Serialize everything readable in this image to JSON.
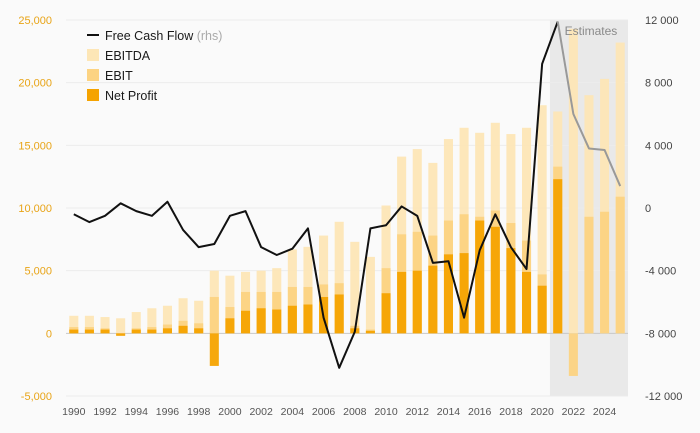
{
  "chart_data": {
    "type": "bar",
    "title": "",
    "x": [
      1990,
      1991,
      1992,
      1993,
      1994,
      1995,
      1996,
      1997,
      1998,
      1999,
      2000,
      2001,
      2002,
      2003,
      2004,
      2005,
      2006,
      2007,
      2008,
      2009,
      2010,
      2011,
      2012,
      2013,
      2014,
      2015,
      2016,
      2017,
      2018,
      2019,
      2020,
      2021,
      2022,
      2023,
      2024,
      2025
    ],
    "x_tick_labels": [
      "1990",
      "1992",
      "1994",
      "1996",
      "1998",
      "2000",
      "2002",
      "2004",
      "2006",
      "2008",
      "2010",
      "2012",
      "2014",
      "2016",
      "2018",
      "2020",
      "2022",
      "2024"
    ],
    "left_axis": {
      "ylim": [
        -5000,
        25000
      ],
      "tick_labels": [
        "-5,000",
        "0",
        "5,000",
        "10,000",
        "15,000",
        "20,000",
        "25,000"
      ],
      "tick_values": [
        -5000,
        0,
        5000,
        10000,
        15000,
        20000,
        25000
      ]
    },
    "right_axis": {
      "ylim": [
        -12000,
        12000
      ],
      "tick_labels": [
        "-12 000",
        "-8 000",
        "-4 000",
        "0",
        "4 000",
        "8 000",
        "12 000"
      ],
      "tick_values": [
        -12000,
        -8000,
        -4000,
        0,
        4000,
        8000,
        12000
      ]
    },
    "series": [
      {
        "name": "EBITDA",
        "axis": "left",
        "type": "bar",
        "color": "#fde6b6",
        "values": [
          1400,
          1400,
          1300,
          1200,
          1700,
          2000,
          2200,
          2800,
          2600,
          5000,
          4600,
          4900,
          5000,
          5200,
          6700,
          6900,
          7800,
          8900,
          7300,
          6100,
          10200,
          14100,
          14700,
          13600,
          15500,
          16400,
          16000,
          16800,
          15900,
          16400,
          18200,
          17700,
          24300,
          19000,
          20300,
          23200
        ]
      },
      {
        "name": "EBIT",
        "axis": "left",
        "type": "bar",
        "color": "#fcd382",
        "values": [
          500,
          500,
          400,
          -100,
          400,
          500,
          700,
          1000,
          800,
          2900,
          2100,
          3300,
          3300,
          3300,
          3700,
          3700,
          3900,
          4000,
          600,
          300,
          5200,
          7900,
          8100,
          7800,
          9000,
          9500,
          9300,
          9800,
          8800,
          7400,
          4700,
          13300,
          -3400,
          9300,
          9700,
          10900
        ]
      },
      {
        "name": "Net Profit",
        "axis": "left",
        "type": "bar",
        "color": "#f5a300",
        "values": [
          300,
          300,
          300,
          -200,
          300,
          300,
          400,
          600,
          400,
          -2600,
          1200,
          1800,
          2000,
          1900,
          2200,
          2300,
          2900,
          3100,
          400,
          200,
          3200,
          4900,
          5000,
          5400,
          6300,
          6400,
          9000,
          8500,
          6800,
          4900,
          3800,
          12300,
          null,
          null,
          null,
          null
        ]
      },
      {
        "name": "Free Cash Flow",
        "suffix": "(rhs)",
        "axis": "right",
        "type": "line",
        "color": "#111111",
        "estimate_color": "#999999",
        "values": [
          -400,
          -900,
          -500,
          300,
          -200,
          -500,
          400,
          -1400,
          -2500,
          -2300,
          -500,
          -200,
          -2500,
          -3000,
          -2600,
          -1300,
          -7000,
          -10200,
          -7900,
          -1300,
          -1100,
          100,
          -500,
          -3500,
          -3400,
          -7000,
          -2700,
          -400,
          -2500,
          -3900,
          9200,
          11900,
          6000,
          3800,
          3700,
          1400
        ]
      }
    ],
    "estimates": {
      "label": "Estimates",
      "from": 2021,
      "shade_color": "#e9e9e9"
    },
    "legend_position": "top-left",
    "grid": true
  }
}
